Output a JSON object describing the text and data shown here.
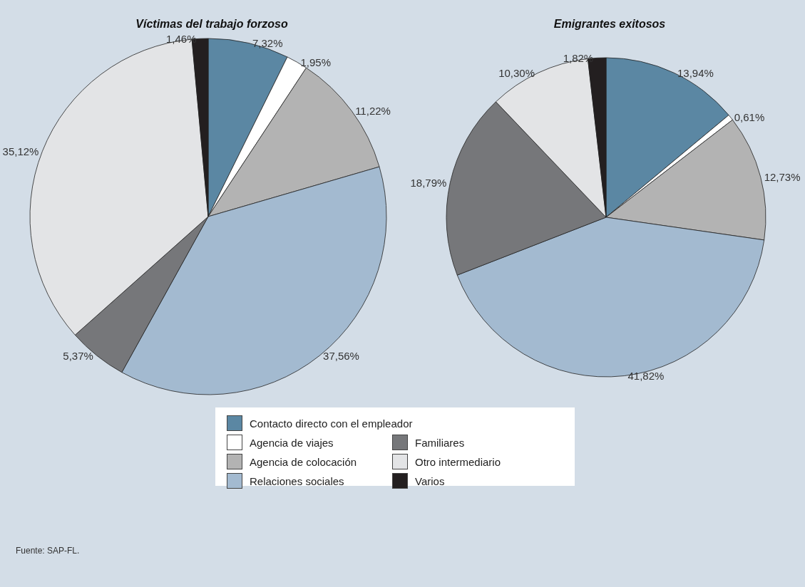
{
  "chart_data": [
    {
      "type": "pie",
      "title": "Víctimas del trabajo forzoso",
      "categories": [
        "Contacto directo con el empleador",
        "Agencia de viajes",
        "Agencia de colocación",
        "Relaciones sociales",
        "Familiares",
        "Otro intermediario",
        "Varios"
      ],
      "values": [
        7.32,
        1.95,
        11.22,
        37.56,
        5.37,
        35.12,
        1.46
      ],
      "value_labels": [
        "7,32%",
        "1,95%",
        "11,22%",
        "37,56%",
        "5,37%",
        "35,12%",
        "1,46%"
      ],
      "colors": [
        "#5b87a3",
        "#ffffff",
        "#b3b3b3",
        "#a3bad0",
        "#76777a",
        "#e3e4e6",
        "#231f20"
      ],
      "legend": "bottom",
      "annotations": [
        "Fuente: SAP-FL."
      ]
    },
    {
      "type": "pie",
      "title": "Emigrantes exitosos",
      "categories": [
        null,
        null,
        null,
        null,
        null,
        null,
        null
      ],
      "values": [
        13.94,
        0.61,
        12.73,
        41.82,
        18.79,
        10.3,
        1.82
      ],
      "value_labels": [
        "13,94%",
        "0,61%",
        "12,73%",
        "41,82%",
        "18,79%",
        "10,30%",
        "1,82%"
      ],
      "colors": [
        "#5b87a3",
        "#ffffff",
        "#b3b3b3",
        "#a3bad0",
        "#76777a",
        "#e3e4e6",
        "#231f20"
      ]
    }
  ]
}
